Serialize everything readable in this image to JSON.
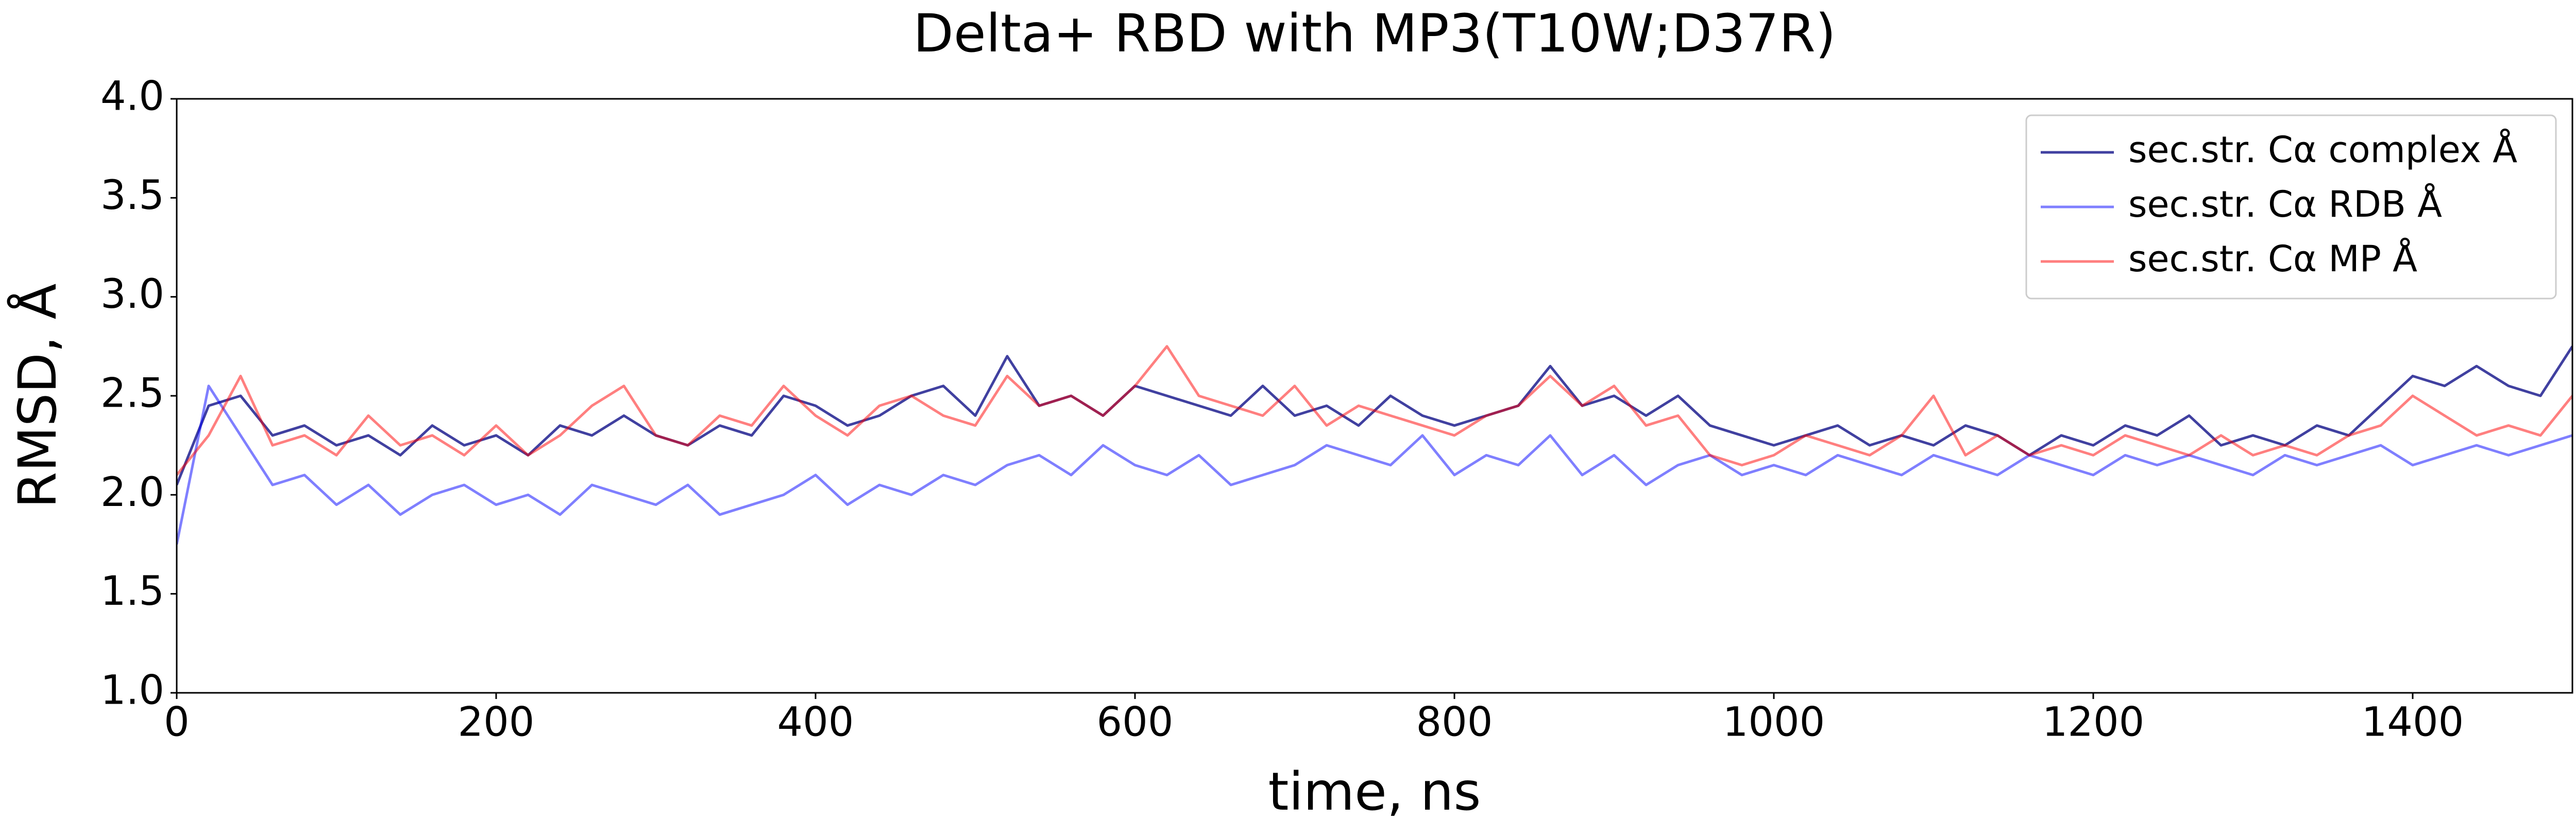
{
  "chart_data": {
    "type": "line",
    "title": "Delta+ RBD with MP3(T10W;D37R)",
    "xlabel": "time, ns",
    "ylabel": "RMSD, Å",
    "x": [
      0,
      20,
      40,
      60,
      80,
      100,
      120,
      140,
      160,
      180,
      200,
      220,
      240,
      260,
      280,
      300,
      320,
      340,
      360,
      380,
      400,
      420,
      440,
      460,
      480,
      500,
      520,
      540,
      560,
      580,
      600,
      620,
      640,
      660,
      680,
      700,
      720,
      740,
      760,
      780,
      800,
      820,
      840,
      860,
      880,
      900,
      920,
      940,
      960,
      980,
      1000,
      1020,
      1040,
      1060,
      1080,
      1100,
      1120,
      1140,
      1160,
      1180,
      1200,
      1220,
      1240,
      1260,
      1280,
      1300,
      1320,
      1340,
      1360,
      1380,
      1400,
      1420,
      1440,
      1460,
      1480,
      1500
    ],
    "series": [
      {
        "name": "sec.str. Cα complex Å",
        "color": "#000080",
        "values": [
          2.05,
          2.45,
          2.5,
          2.3,
          2.35,
          2.25,
          2.3,
          2.2,
          2.35,
          2.25,
          2.3,
          2.2,
          2.35,
          2.3,
          2.4,
          2.3,
          2.25,
          2.35,
          2.3,
          2.5,
          2.45,
          2.35,
          2.4,
          2.5,
          2.55,
          2.4,
          2.7,
          2.45,
          2.5,
          2.4,
          2.55,
          2.5,
          2.45,
          2.4,
          2.55,
          2.4,
          2.45,
          2.35,
          2.5,
          2.4,
          2.35,
          2.4,
          2.45,
          2.65,
          2.45,
          2.5,
          2.4,
          2.5,
          2.35,
          2.3,
          2.25,
          2.3,
          2.35,
          2.25,
          2.3,
          2.25,
          2.35,
          2.3,
          2.2,
          2.3,
          2.25,
          2.35,
          2.3,
          2.4,
          2.25,
          2.3,
          2.25,
          2.35,
          2.3,
          2.45,
          2.6,
          2.55,
          2.65,
          2.55,
          2.5,
          2.75
        ]
      },
      {
        "name": "sec.str. Cα RDB Å",
        "color": "#0000ff",
        "values": [
          1.75,
          2.55,
          2.3,
          2.05,
          2.1,
          1.95,
          2.05,
          1.9,
          2.0,
          2.05,
          1.95,
          2.0,
          1.9,
          2.05,
          2.0,
          1.95,
          2.05,
          1.9,
          1.95,
          2.0,
          2.1,
          1.95,
          2.05,
          2.0,
          2.1,
          2.05,
          2.15,
          2.2,
          2.1,
          2.25,
          2.15,
          2.1,
          2.2,
          2.05,
          2.1,
          2.15,
          2.25,
          2.2,
          2.15,
          2.3,
          2.1,
          2.2,
          2.15,
          2.3,
          2.1,
          2.2,
          2.05,
          2.15,
          2.2,
          2.1,
          2.15,
          2.1,
          2.2,
          2.15,
          2.1,
          2.2,
          2.15,
          2.1,
          2.2,
          2.15,
          2.1,
          2.2,
          2.15,
          2.2,
          2.15,
          2.1,
          2.2,
          2.15,
          2.2,
          2.25,
          2.15,
          2.2,
          2.25,
          2.2,
          2.25,
          2.3
        ]
      },
      {
        "name": "sec.str. Cα MP Å",
        "color": "#ff0000",
        "values": [
          2.1,
          2.3,
          2.6,
          2.25,
          2.3,
          2.2,
          2.4,
          2.25,
          2.3,
          2.2,
          2.35,
          2.2,
          2.3,
          2.45,
          2.55,
          2.3,
          2.25,
          2.4,
          2.35,
          2.55,
          2.4,
          2.3,
          2.45,
          2.5,
          2.4,
          2.35,
          2.6,
          2.45,
          2.5,
          2.4,
          2.55,
          2.75,
          2.5,
          2.45,
          2.4,
          2.55,
          2.35,
          2.45,
          2.4,
          2.35,
          2.3,
          2.4,
          2.45,
          2.6,
          2.45,
          2.55,
          2.35,
          2.4,
          2.2,
          2.15,
          2.2,
          2.3,
          2.25,
          2.2,
          2.3,
          2.5,
          2.2,
          2.3,
          2.2,
          2.25,
          2.2,
          2.3,
          2.25,
          2.2,
          2.3,
          2.2,
          2.25,
          2.2,
          2.3,
          2.35,
          2.5,
          2.4,
          2.3,
          2.35,
          2.3,
          2.5
        ]
      }
    ],
    "xlim": [
      0,
      1500
    ],
    "xticks": [
      0,
      200,
      400,
      600,
      800,
      1000,
      1200,
      1400
    ],
    "ylim": [
      1,
      4
    ],
    "yticks": [
      {
        "value": 1,
        "label": "1.0"
      },
      1.5,
      {
        "value": 2,
        "label": "2.0"
      },
      2.5,
      {
        "value": 3,
        "label": "3.0"
      },
      3.5,
      {
        "value": 4,
        "label": "4.0"
      }
    ],
    "legend": "upper right"
  }
}
